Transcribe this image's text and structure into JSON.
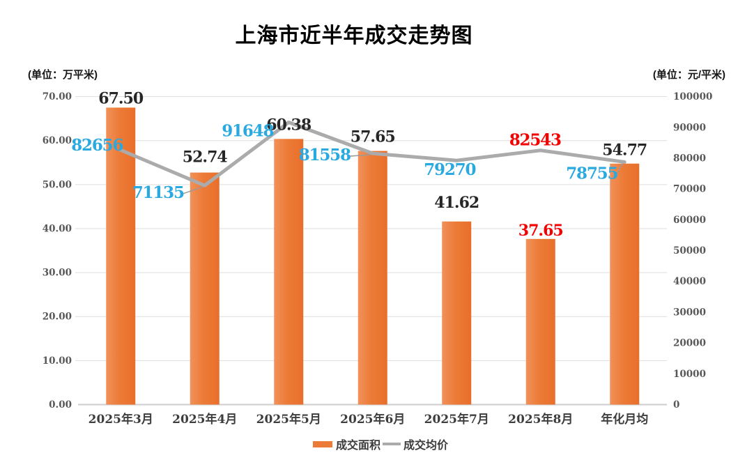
{
  "title": "上海市近半年成交走势图",
  "axis_units": {
    "left": "(单位：万平米)",
    "right": "(单位：元/平米)"
  },
  "legend": {
    "items": [
      {
        "label": "成交面积",
        "marker": "bar-swatch",
        "color": "#EC7B37"
      },
      {
        "label": "成交均价",
        "marker": "line-swatch",
        "color": "#ABABAB"
      }
    ],
    "position": "bottom-center"
  },
  "colors": {
    "bar_orange": "#EC7B37",
    "line_gray": "#ABABAB",
    "label_cyan": "#29A9E0",
    "label_red": "#F40000",
    "label_black": "#262626",
    "axis_text": "#575757",
    "category_text": "#3D3D3D",
    "gridline": "#DEDEDE",
    "baseline": "#CDCDCD"
  },
  "chart_data": {
    "type": "bar+line combo",
    "title": "上海市近半年成交走势图",
    "categories": [
      "2025年3月",
      "2025年4月",
      "2025年5月",
      "2025年6月",
      "2025年7月",
      "2025年8月",
      "年化月均"
    ],
    "series": [
      {
        "name": "成交面积",
        "type": "bar",
        "axis": "left",
        "unit": "万平米",
        "values": [
          67.5,
          52.74,
          60.38,
          57.65,
          41.62,
          37.65,
          54.77
        ],
        "labels": [
          "67.50",
          "52.74",
          "60.38",
          "57.65",
          "41.62",
          "37.65",
          "54.77"
        ],
        "label_colors": [
          "#262626",
          "#262626",
          "#262626",
          "#262626",
          "#262626",
          "#F40000",
          "#262626"
        ],
        "color": "#EC7B37"
      },
      {
        "name": "成交均价",
        "type": "line",
        "axis": "right",
        "unit": "元/平米",
        "values": [
          82656,
          71135,
          91648,
          81558,
          79270,
          82543,
          78755
        ],
        "labels": [
          "82656",
          "71135",
          "91648",
          "81558",
          "79270",
          "82543",
          "78755"
        ],
        "label_colors": [
          "#29A9E0",
          "#29A9E0",
          "#29A9E0",
          "#29A9E0",
          "#29A9E0",
          "#F40000",
          "#29A9E0"
        ],
        "color": "#ABABAB"
      }
    ],
    "left_axis": {
      "min": 0,
      "max": 70,
      "tick_labels": [
        "0.00",
        "10.00",
        "20.00",
        "30.00",
        "40.00",
        "50.00",
        "60.00",
        "70.00"
      ]
    },
    "right_axis": {
      "min": 0,
      "max": 100000,
      "tick_labels": [
        "0",
        "10000",
        "20000",
        "30000",
        "40000",
        "50000",
        "60000",
        "70000",
        "80000",
        "90000",
        "100000"
      ]
    },
    "grid": "horizontal-only",
    "legend_position": "bottom",
    "highlight_category_index": 5
  }
}
